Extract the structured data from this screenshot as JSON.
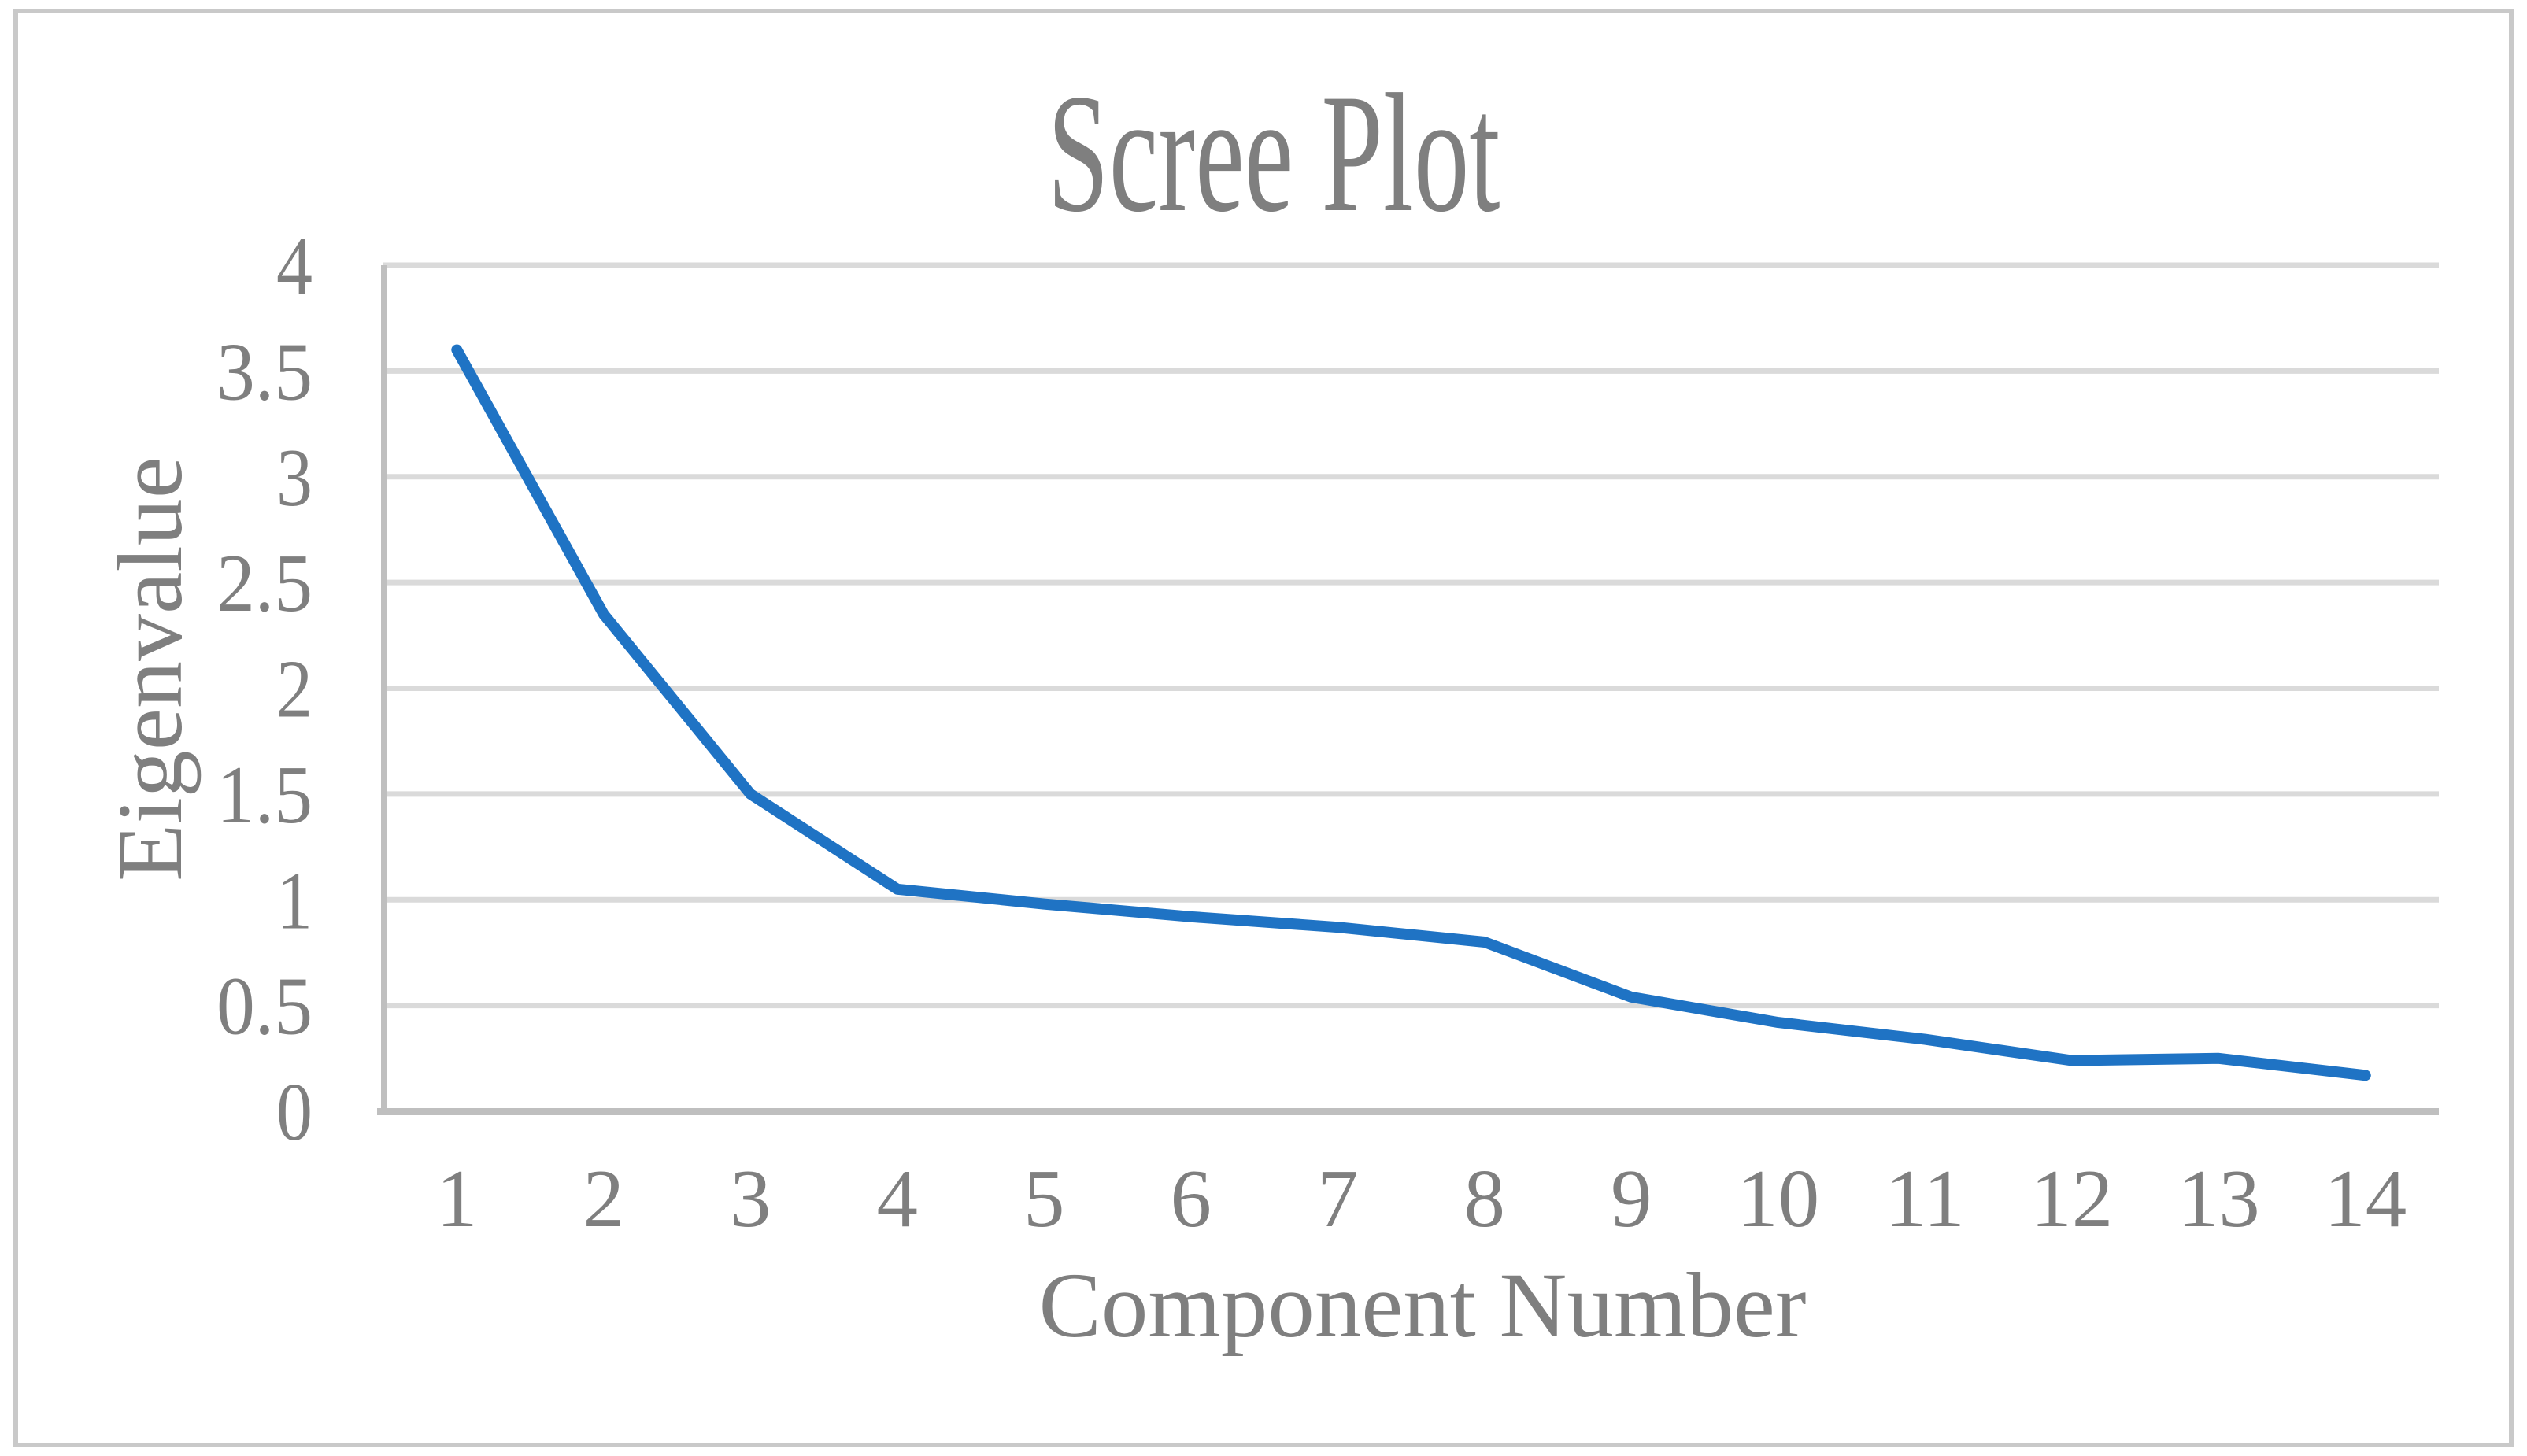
{
  "figure": {
    "background_color": "#ffffff",
    "frame_color": "#c9c9c9"
  },
  "chart_data": {
    "type": "line",
    "title": "Scree Plot",
    "xlabel": "Component Number",
    "ylabel": "Eigenvalue",
    "categories": [
      "1",
      "2",
      "3",
      "4",
      "5",
      "6",
      "7",
      "8",
      "9",
      "10",
      "11",
      "12",
      "13",
      "14"
    ],
    "series": [
      {
        "name": "Eigenvalue",
        "values": [
          3.6,
          2.35,
          1.5,
          1.05,
          0.98,
          0.92,
          0.87,
          0.8,
          0.54,
          0.42,
          0.34,
          0.24,
          0.25,
          0.17
        ]
      }
    ],
    "ylim": [
      0,
      4
    ],
    "yticks": [
      {
        "value": 0,
        "label": "0"
      },
      {
        "value": 0.5,
        "label": "0.5"
      },
      {
        "value": 1,
        "label": "1"
      },
      {
        "value": 1.5,
        "label": "1.5"
      },
      {
        "value": 2,
        "label": "2"
      },
      {
        "value": 2.5,
        "label": "2.5"
      },
      {
        "value": 3,
        "label": "3"
      },
      {
        "value": 3.5,
        "label": "3.5"
      },
      {
        "value": 4,
        "label": "4"
      }
    ],
    "grid": "horizontal",
    "legend_position": "none",
    "line_color": "#1f73c4",
    "gridline_color": "#dadada",
    "axis_color": "#bfbfbf",
    "text_color": "#7f7f7f"
  }
}
